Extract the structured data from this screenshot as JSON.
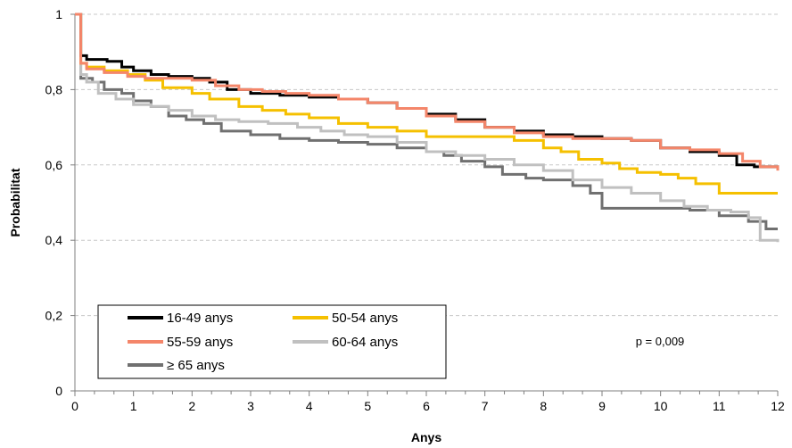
{
  "chart_data": {
    "type": "line",
    "xlabel": "Anys",
    "ylabel": "Probabilitat",
    "xlim": [
      0,
      12
    ],
    "ylim": [
      0,
      1
    ],
    "x_ticks": [
      0,
      1,
      2,
      3,
      4,
      5,
      6,
      7,
      8,
      9,
      10,
      11,
      12
    ],
    "x_tick_labels": [
      "0",
      "1",
      "2",
      "3",
      "4",
      "5",
      "6",
      "7",
      "8",
      "9",
      "10",
      "11",
      "12"
    ],
    "y_ticks": [
      0,
      0.2,
      0.4,
      0.6,
      0.8,
      1
    ],
    "y_tick_labels": [
      "0",
      "0,2",
      "0,4",
      "0,6",
      "0,8",
      "1"
    ],
    "grid": "horizontal dashed",
    "legend_position": "bottom-left",
    "annotation": "p = 0,009",
    "series": [
      {
        "name": "16-49 anys",
        "color": "#000000",
        "x": [
          0,
          0.1,
          0.2,
          0.4,
          0.55,
          0.8,
          1.0,
          1.3,
          1.6,
          2.0,
          2.3,
          2.6,
          3.0,
          3.5,
          4.0,
          4.5,
          5.0,
          5.5,
          6.0,
          6.5,
          7.0,
          7.5,
          8.0,
          8.5,
          9.0,
          9.5,
          10.0,
          10.5,
          11.0,
          11.3,
          11.6,
          12.0
        ],
        "y": [
          1,
          0.89,
          0.88,
          0.88,
          0.875,
          0.86,
          0.85,
          0.84,
          0.835,
          0.83,
          0.82,
          0.8,
          0.79,
          0.785,
          0.78,
          0.775,
          0.765,
          0.75,
          0.735,
          0.72,
          0.7,
          0.69,
          0.68,
          0.675,
          0.67,
          0.665,
          0.645,
          0.635,
          0.625,
          0.6,
          0.595,
          0.59
        ]
      },
      {
        "name": "50-54 anys",
        "color": "#f5c000",
        "x": [
          0,
          0.1,
          0.2,
          0.5,
          0.9,
          1.2,
          1.5,
          2.0,
          2.3,
          2.8,
          3.2,
          3.6,
          4.0,
          4.5,
          5.0,
          5.5,
          6.0,
          6.5,
          7.0,
          7.5,
          8.0,
          8.3,
          8.6,
          9.0,
          9.3,
          9.6,
          10.0,
          10.3,
          10.6,
          11.0,
          11.5,
          12.0
        ],
        "y": [
          1,
          0.87,
          0.86,
          0.85,
          0.84,
          0.825,
          0.805,
          0.79,
          0.775,
          0.755,
          0.745,
          0.735,
          0.725,
          0.71,
          0.7,
          0.69,
          0.675,
          0.675,
          0.675,
          0.665,
          0.645,
          0.635,
          0.615,
          0.605,
          0.59,
          0.58,
          0.575,
          0.565,
          0.55,
          0.525,
          0.525,
          0.525
        ]
      },
      {
        "name": "55-59 anys",
        "color": "#f4866a",
        "x": [
          0,
          0.1,
          0.2,
          0.5,
          0.9,
          1.2,
          1.6,
          2.0,
          2.4,
          2.8,
          3.2,
          3.6,
          4.0,
          4.5,
          5.0,
          5.5,
          6.0,
          6.5,
          7.0,
          7.5,
          8.0,
          8.5,
          9.0,
          9.5,
          10.0,
          10.5,
          11.0,
          11.4,
          11.7,
          12.0
        ],
        "y": [
          1,
          0.87,
          0.855,
          0.845,
          0.835,
          0.83,
          0.83,
          0.825,
          0.81,
          0.8,
          0.795,
          0.79,
          0.785,
          0.775,
          0.765,
          0.75,
          0.73,
          0.715,
          0.7,
          0.685,
          0.675,
          0.67,
          0.67,
          0.665,
          0.645,
          0.64,
          0.63,
          0.61,
          0.595,
          0.585
        ]
      },
      {
        "name": "60-64 anys",
        "color": "#c0c0c0",
        "x": [
          0,
          0.1,
          0.2,
          0.4,
          0.7,
          1.0,
          1.3,
          1.6,
          2.0,
          2.4,
          2.8,
          3.3,
          3.8,
          4.2,
          4.6,
          5.0,
          5.5,
          6.0,
          6.5,
          7.0,
          7.5,
          8.0,
          8.5,
          9.0,
          9.5,
          10.0,
          10.4,
          10.8,
          11.2,
          11.5,
          11.7,
          12.0
        ],
        "y": [
          1,
          0.84,
          0.82,
          0.79,
          0.775,
          0.76,
          0.755,
          0.745,
          0.73,
          0.72,
          0.715,
          0.71,
          0.7,
          0.69,
          0.68,
          0.675,
          0.66,
          0.635,
          0.625,
          0.615,
          0.6,
          0.585,
          0.56,
          0.54,
          0.525,
          0.505,
          0.49,
          0.48,
          0.475,
          0.46,
          0.4,
          0.395
        ]
      },
      {
        "name": "≥ 65 anys",
        "color": "#707070",
        "x": [
          0,
          0.1,
          0.3,
          0.5,
          0.8,
          1.0,
          1.3,
          1.6,
          1.9,
          2.2,
          2.5,
          3.0,
          3.5,
          4.0,
          4.5,
          5.0,
          5.5,
          6.0,
          6.3,
          6.6,
          7.0,
          7.3,
          7.7,
          8.0,
          8.5,
          8.8,
          9.0,
          9.5,
          10.0,
          10.5,
          11.0,
          11.5,
          11.8,
          12.0
        ],
        "y": [
          1,
          0.83,
          0.82,
          0.8,
          0.79,
          0.77,
          0.755,
          0.73,
          0.72,
          0.71,
          0.69,
          0.68,
          0.67,
          0.665,
          0.66,
          0.655,
          0.645,
          0.635,
          0.625,
          0.61,
          0.595,
          0.575,
          0.565,
          0.56,
          0.545,
          0.525,
          0.485,
          0.485,
          0.485,
          0.48,
          0.465,
          0.45,
          0.43,
          0.43
        ]
      }
    ]
  }
}
